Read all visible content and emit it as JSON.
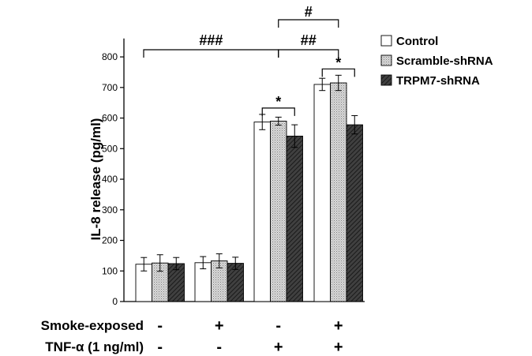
{
  "chart_data": {
    "type": "bar",
    "ylabel": "IL-8 release (pg/ml)",
    "ylim": [
      0,
      850
    ],
    "yticks": [
      0,
      100,
      200,
      300,
      400,
      500,
      600,
      700,
      800
    ],
    "grid": false,
    "legend_position": "top-right",
    "conditions": [
      {
        "label": "Smoke-exposed",
        "values": [
          "-",
          "+",
          "-",
          "+"
        ]
      },
      {
        "label": "TNF-α (1 ng/ml)",
        "values": [
          "-",
          "-",
          "+",
          "+"
        ]
      }
    ],
    "series": [
      {
        "name": "Control",
        "style": "white",
        "values": [
          122,
          127,
          587,
          710
        ],
        "errors": [
          22,
          20,
          25,
          20
        ]
      },
      {
        "name": "Scramble-shRNA",
        "style": "dotted",
        "values": [
          126,
          133,
          590,
          715
        ],
        "errors": [
          27,
          23,
          13,
          25
        ]
      },
      {
        "name": "TRPM7-shRNA",
        "style": "hatched",
        "values": [
          124,
          125,
          541,
          578
        ],
        "errors": [
          20,
          20,
          37,
          30
        ]
      }
    ],
    "annotations": [
      {
        "label": "###",
        "from_group": 0,
        "to_group": 2
      },
      {
        "label": "##",
        "from_group": 2,
        "to_group": 3
      },
      {
        "label": "#",
        "from_group": 2,
        "to_group": 3,
        "level": "upper"
      },
      {
        "label": "*",
        "group": 2
      },
      {
        "label": "*",
        "group": 3
      }
    ]
  }
}
